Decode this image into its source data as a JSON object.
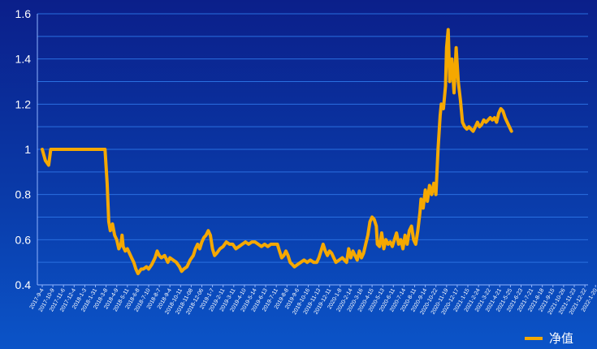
{
  "chart_data": {
    "type": "line",
    "title": "",
    "xlabel": "",
    "ylabel": "",
    "ylim": [
      0.4,
      1.6
    ],
    "y_ticks": [
      "0.4",
      "0.6",
      "0.8",
      "1",
      "1.2",
      "1.4",
      "1.6"
    ],
    "x_tick_labels": [
      "2017-9-4",
      "2017-10-9",
      "2017-11-6",
      "2017-12-4",
      "2018-1-3",
      "2018-1-31",
      "2018-3-8",
      "2018-4-9",
      "2018-5-11",
      "2018-6-8",
      "2018-7-10",
      "2018-8-7",
      "2018-9-4",
      "2018-10-11",
      "2018-11-08",
      "2018-12-06",
      "2019-1-7",
      "2019-2-11",
      "2019-3-11",
      "2019-4-10",
      "2019-5-14",
      "2019-6-13",
      "2019-7-11",
      "2019-8-8",
      "2019-9-6",
      "2019-10-16",
      "2019-11-13",
      "2019-12-11",
      "2020-1-8",
      "2020-2-14",
      "2020-3-16",
      "2020-4-15",
      "2020-5-13",
      "2020-6-11",
      "2020-7-14",
      "2020-8-11",
      "2020-9-14",
      "2020-10-22",
      "2020-11-19",
      "2020-12-17",
      "2021-1-15",
      "2021-2-24",
      "2021-3-22",
      "2021-4-21",
      "2021-5-25",
      "2021-6-23",
      "2021-7-21",
      "2021-8-18",
      "2021-9-15",
      "2021-10-26",
      "2021-11-23",
      "2021-12-22",
      "2022-1-20"
    ],
    "grid": true,
    "legend": "bottom-right",
    "series": [
      {
        "name": "净值",
        "color": "#f5a800",
        "points": [
          [
            0,
            1.0
          ],
          [
            0.3,
            0.95
          ],
          [
            0.6,
            0.93
          ],
          [
            0.8,
            1.0
          ],
          [
            2,
            1.0
          ],
          [
            4,
            1.0
          ],
          [
            5.5,
            1.0
          ],
          [
            5.9,
            1.0
          ],
          [
            6.1,
            0.85
          ],
          [
            6.25,
            0.68
          ],
          [
            6.4,
            0.64
          ],
          [
            6.6,
            0.67
          ],
          [
            6.8,
            0.62
          ],
          [
            7.0,
            0.6
          ],
          [
            7.2,
            0.56
          ],
          [
            7.4,
            0.58
          ],
          [
            7.5,
            0.62
          ],
          [
            7.6,
            0.57
          ],
          [
            7.8,
            0.55
          ],
          [
            8.0,
            0.56
          ],
          [
            8.2,
            0.54
          ],
          [
            8.4,
            0.52
          ],
          [
            8.6,
            0.5
          ],
          [
            8.8,
            0.47
          ],
          [
            9.0,
            0.45
          ],
          [
            9.3,
            0.47
          ],
          [
            9.5,
            0.47
          ],
          [
            9.8,
            0.48
          ],
          [
            10.0,
            0.47
          ],
          [
            10.3,
            0.49
          ],
          [
            10.6,
            0.52
          ],
          [
            10.8,
            0.55
          ],
          [
            11.0,
            0.53
          ],
          [
            11.2,
            0.52
          ],
          [
            11.5,
            0.53
          ],
          [
            11.8,
            0.5
          ],
          [
            12.0,
            0.52
          ],
          [
            12.3,
            0.51
          ],
          [
            12.6,
            0.5
          ],
          [
            12.9,
            0.48
          ],
          [
            13.1,
            0.46
          ],
          [
            13.3,
            0.47
          ],
          [
            13.6,
            0.48
          ],
          [
            13.9,
            0.51
          ],
          [
            14.2,
            0.53
          ],
          [
            14.4,
            0.56
          ],
          [
            14.6,
            0.58
          ],
          [
            14.8,
            0.56
          ],
          [
            15.0,
            0.59
          ],
          [
            15.2,
            0.61
          ],
          [
            15.4,
            0.62
          ],
          [
            15.6,
            0.64
          ],
          [
            15.8,
            0.62
          ],
          [
            16.0,
            0.56
          ],
          [
            16.2,
            0.53
          ],
          [
            16.4,
            0.54
          ],
          [
            16.7,
            0.56
          ],
          [
            17.0,
            0.57
          ],
          [
            17.3,
            0.59
          ],
          [
            17.6,
            0.58
          ],
          [
            17.9,
            0.58
          ],
          [
            18.2,
            0.56
          ],
          [
            18.5,
            0.57
          ],
          [
            18.8,
            0.58
          ],
          [
            19.1,
            0.59
          ],
          [
            19.4,
            0.58
          ],
          [
            19.7,
            0.59
          ],
          [
            20.0,
            0.59
          ],
          [
            20.3,
            0.58
          ],
          [
            20.6,
            0.57
          ],
          [
            20.9,
            0.58
          ],
          [
            21.2,
            0.57
          ],
          [
            21.5,
            0.58
          ],
          [
            21.8,
            0.58
          ],
          [
            22.1,
            0.58
          ],
          [
            22.3,
            0.55
          ],
          [
            22.5,
            0.52
          ],
          [
            22.7,
            0.53
          ],
          [
            22.9,
            0.55
          ],
          [
            23.1,
            0.53
          ],
          [
            23.3,
            0.5
          ],
          [
            23.5,
            0.49
          ],
          [
            23.7,
            0.48
          ],
          [
            24.0,
            0.49
          ],
          [
            24.3,
            0.5
          ],
          [
            24.6,
            0.51
          ],
          [
            24.9,
            0.5
          ],
          [
            25.2,
            0.51
          ],
          [
            25.5,
            0.5
          ],
          [
            25.8,
            0.5
          ],
          [
            26.0,
            0.52
          ],
          [
            26.2,
            0.55
          ],
          [
            26.4,
            0.58
          ],
          [
            26.6,
            0.55
          ],
          [
            26.8,
            0.53
          ],
          [
            27.0,
            0.55
          ],
          [
            27.2,
            0.54
          ],
          [
            27.4,
            0.52
          ],
          [
            27.6,
            0.5
          ],
          [
            27.9,
            0.51
          ],
          [
            28.2,
            0.52
          ],
          [
            28.4,
            0.51
          ],
          [
            28.6,
            0.5
          ],
          [
            28.8,
            0.56
          ],
          [
            29.0,
            0.52
          ],
          [
            29.2,
            0.55
          ],
          [
            29.4,
            0.53
          ],
          [
            29.6,
            0.51
          ],
          [
            29.8,
            0.55
          ],
          [
            30.0,
            0.52
          ],
          [
            30.2,
            0.54
          ],
          [
            30.4,
            0.58
          ],
          [
            30.6,
            0.62
          ],
          [
            30.8,
            0.68
          ],
          [
            31.0,
            0.7
          ],
          [
            31.2,
            0.69
          ],
          [
            31.4,
            0.66
          ],
          [
            31.5,
            0.58
          ],
          [
            31.7,
            0.57
          ],
          [
            31.9,
            0.63
          ],
          [
            32.1,
            0.56
          ],
          [
            32.3,
            0.6
          ],
          [
            32.5,
            0.58
          ],
          [
            32.7,
            0.59
          ],
          [
            32.9,
            0.57
          ],
          [
            33.1,
            0.6
          ],
          [
            33.3,
            0.63
          ],
          [
            33.5,
            0.58
          ],
          [
            33.7,
            0.6
          ],
          [
            33.9,
            0.56
          ],
          [
            34.1,
            0.62
          ],
          [
            34.3,
            0.58
          ],
          [
            34.5,
            0.64
          ],
          [
            34.7,
            0.66
          ],
          [
            34.9,
            0.6
          ],
          [
            35.1,
            0.58
          ],
          [
            35.3,
            0.64
          ],
          [
            35.5,
            0.72
          ],
          [
            35.6,
            0.78
          ],
          [
            35.8,
            0.74
          ],
          [
            36.0,
            0.82
          ],
          [
            36.2,
            0.77
          ],
          [
            36.4,
            0.84
          ],
          [
            36.6,
            0.8
          ],
          [
            36.8,
            0.85
          ],
          [
            37.0,
            0.8
          ],
          [
            37.2,
            1.0
          ],
          [
            37.4,
            1.15
          ],
          [
            37.5,
            1.2
          ],
          [
            37.7,
            1.18
          ],
          [
            37.9,
            1.28
          ],
          [
            38.0,
            1.45
          ],
          [
            38.15,
            1.53
          ],
          [
            38.3,
            1.3
          ],
          [
            38.5,
            1.4
          ],
          [
            38.7,
            1.25
          ],
          [
            38.9,
            1.45
          ],
          [
            39.1,
            1.3
          ],
          [
            39.3,
            1.22
          ],
          [
            39.5,
            1.12
          ],
          [
            39.7,
            1.1
          ],
          [
            39.9,
            1.09
          ],
          [
            40.1,
            1.1
          ],
          [
            40.3,
            1.09
          ],
          [
            40.5,
            1.08
          ],
          [
            40.7,
            1.1
          ],
          [
            40.9,
            1.12
          ],
          [
            41.1,
            1.1
          ],
          [
            41.3,
            1.11
          ],
          [
            41.5,
            1.13
          ],
          [
            41.7,
            1.12
          ],
          [
            41.9,
            1.13
          ],
          [
            42.1,
            1.14
          ],
          [
            42.3,
            1.13
          ],
          [
            42.5,
            1.14
          ],
          [
            42.7,
            1.12
          ],
          [
            42.9,
            1.16
          ],
          [
            43.1,
            1.18
          ],
          [
            43.3,
            1.17
          ],
          [
            43.5,
            1.14
          ],
          [
            43.7,
            1.12
          ],
          [
            43.9,
            1.1
          ],
          [
            44.1,
            1.08
          ]
        ]
      }
    ]
  }
}
